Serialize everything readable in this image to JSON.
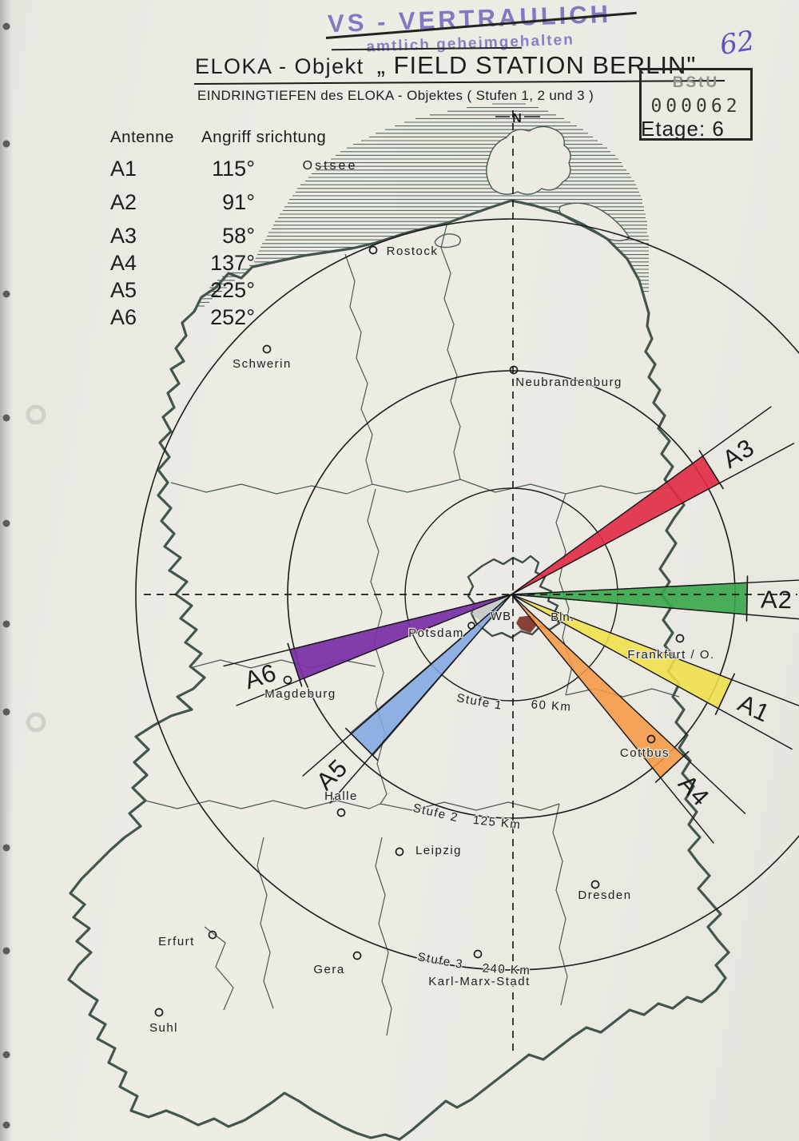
{
  "document": {
    "classification_stamp": {
      "line1": "VS - VERTRAULICH",
      "line2": "amtlich geheimgehalten"
    },
    "handwritten_page_number": "62",
    "archive_stamp": {
      "org": "BStU",
      "number": "000062"
    },
    "floor_note": "Etage: 6",
    "title_prefix": "ELOKA - Objekt",
    "title_name": "„ FIELD STATION BERLIN\"",
    "subtitle": "EINDRINGTIEFEN des ELOKA - Objektes  ( Stufen 1, 2 und 3 )"
  },
  "antenna_table": {
    "col_antenna": "Antenne",
    "col_bearing": "Angriff srichtung",
    "rows": [
      {
        "antenna": "A1",
        "bearing": "115°"
      },
      {
        "antenna": "A2",
        "bearing": "91°"
      },
      {
        "antenna": "A3",
        "bearing": "58°"
      },
      {
        "antenna": "A4",
        "bearing": "137°"
      },
      {
        "antenna": "A5",
        "bearing": "225°"
      },
      {
        "antenna": "A6",
        "bearing": "252°"
      }
    ]
  },
  "map": {
    "north_label": "N",
    "sea_label": "Ostsee",
    "west_berlin_label": "WB",
    "berlin_label": "Bln.",
    "rings": [
      {
        "name": "Stufe 1",
        "radius_label": "60 Km"
      },
      {
        "name": "Stufe 2",
        "radius_label": "125 Km"
      },
      {
        "name": "Stufe 3",
        "radius_label": "240 Km"
      }
    ],
    "wedges": [
      {
        "id": "A1",
        "bearing_deg": 115,
        "color": "#f2e14a"
      },
      {
        "id": "A2",
        "bearing_deg": 91,
        "color": "#3aa64c"
      },
      {
        "id": "A3",
        "bearing_deg": 58,
        "color": "#e22b45"
      },
      {
        "id": "A4",
        "bearing_deg": 137,
        "color": "#f79a45"
      },
      {
        "id": "A5",
        "bearing_deg": 225,
        "color": "#83a9e3"
      },
      {
        "id": "A6",
        "bearing_deg": 252,
        "color": "#7b2fa6"
      }
    ],
    "cities": [
      {
        "name": "Rostock"
      },
      {
        "name": "Schwerin"
      },
      {
        "name": "Neubrandenburg"
      },
      {
        "name": "Potsdam"
      },
      {
        "name": "Magdeburg"
      },
      {
        "name": "Halle"
      },
      {
        "name": "Leipzig"
      },
      {
        "name": "Dresden"
      },
      {
        "name": "Cottbus"
      },
      {
        "name": "Frankfurt / O."
      },
      {
        "name": "Erfurt"
      },
      {
        "name": "Gera"
      },
      {
        "name": "Suhl"
      },
      {
        "name": "Karl-Marx-Stadt"
      }
    ]
  }
}
